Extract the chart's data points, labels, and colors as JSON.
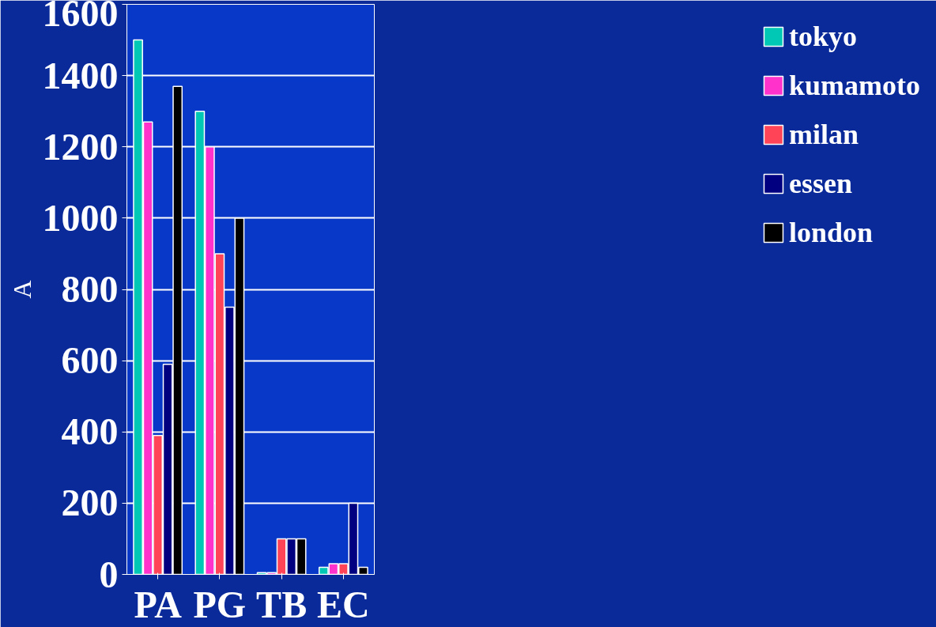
{
  "chart_data": {
    "type": "bar",
    "ylabel": "A",
    "categories": [
      "PA",
      "PG",
      "TB",
      "EC"
    ],
    "series": [
      {
        "name": "tokyo",
        "color": "#00c8b4",
        "values": [
          1500,
          1300,
          5,
          20
        ]
      },
      {
        "name": "kumamoto",
        "color": "#ff33cc",
        "values": [
          1270,
          1200,
          5,
          30
        ]
      },
      {
        "name": "milan",
        "color": "#ff4458",
        "values": [
          390,
          900,
          100,
          30
        ]
      },
      {
        "name": "essen",
        "color": "#000080",
        "values": [
          590,
          750,
          100,
          200
        ]
      },
      {
        "name": "london",
        "color": "#000000",
        "values": [
          1370,
          1000,
          100,
          20
        ]
      }
    ],
    "ylim": [
      0,
      1600
    ],
    "yticks": [
      0,
      200,
      400,
      600,
      800,
      1000,
      1200,
      1400,
      1600
    ],
    "grid": "y",
    "legend": "right"
  }
}
